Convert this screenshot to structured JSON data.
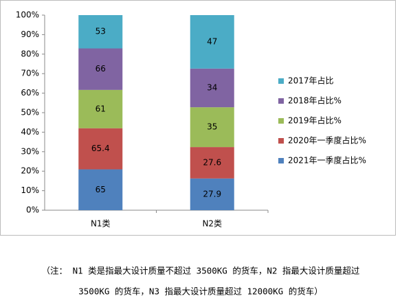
{
  "chart_data": {
    "type": "bar",
    "stacked": "percent",
    "categories": [
      "N1类",
      "N2类"
    ],
    "series": [
      {
        "name": "2021年一季度占比%",
        "color": "#4f81bd",
        "values": [
          65,
          27.9
        ]
      },
      {
        "name": "2020年一季度占比%",
        "color": "#c0504d",
        "values": [
          65.4,
          27.6
        ]
      },
      {
        "name": "2019年占比%",
        "color": "#9bbb59",
        "values": [
          61,
          35
        ]
      },
      {
        "name": "2018年占比%",
        "color": "#8064a2",
        "values": [
          66,
          34
        ]
      },
      {
        "name": "2017年占比",
        "color": "#4bacc6",
        "values": [
          53,
          47
        ]
      }
    ],
    "ylim": [
      0,
      100
    ],
    "yticks": [
      {
        "value": 0,
        "label": "0%"
      },
      {
        "value": 10,
        "label": "10%"
      },
      {
        "value": 20,
        "label": "20%"
      },
      {
        "value": 30,
        "label": "30%"
      },
      {
        "value": 40,
        "label": "40%"
      },
      {
        "value": 50,
        "label": "50%"
      },
      {
        "value": 60,
        "label": "60%"
      },
      {
        "value": 70,
        "label": "70%"
      },
      {
        "value": 80,
        "label": "80%"
      },
      {
        "value": 90,
        "label": "90%"
      },
      {
        "value": 100,
        "label": "100%"
      }
    ],
    "legend": "right",
    "note_lines": [
      "（注： N1 类是指最大设计质量不超过 3500KG 的货车，N2 指最大设计质量超过",
      "3500KG 的货车，N3 指最大设计质量超过 12000KG 的货车）"
    ]
  }
}
